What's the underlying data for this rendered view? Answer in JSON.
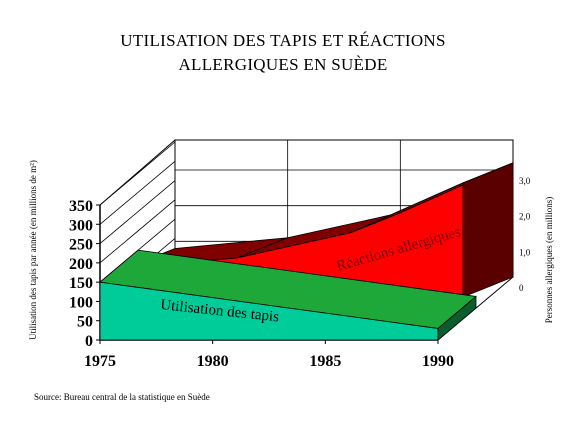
{
  "title_line1": "UTILISATION DES TAPIS ET RÉACTIONS",
  "title_line2": "ALLERGIQUES EN SUÈDE",
  "source": "Source:  Bureau central de la statistique en Suède",
  "colors": {
    "carpet_front": "#00cc99",
    "carpet_top": "#1fa83a",
    "carpet_side": "#0b5d2e",
    "allergy_front": "#ff0000",
    "allergy_top": "#800000",
    "allergy_side": "#5a0000"
  },
  "chart_data": {
    "type": "area",
    "title": "UTILISATION DES TAPIS ET RÉACTIONS ALLERGIQUES EN SUÈDE",
    "x": [
      1975,
      1980,
      1985,
      1990
    ],
    "x_ticks": [
      "1975",
      "1980",
      "1985",
      "1990"
    ],
    "ylabel_left": "Utilisation des tapis par année (en millions de m²)",
    "ylabel_right": "Personnes allergiques (en millions)",
    "y_left_ticks": [
      "0",
      "50",
      "100",
      "150",
      "200",
      "250",
      "300",
      "350"
    ],
    "y_left_lim": [
      0,
      350
    ],
    "y_right_ticks": [
      "0",
      "1,0",
      "2,0",
      "3,0"
    ],
    "y_right_lim": [
      0,
      3
    ],
    "series": [
      {
        "name": "Utilisation des tapis",
        "axis": "left",
        "x": [
          1975,
          1990
        ],
        "values": [
          150,
          30
        ]
      },
      {
        "name": "Réactions allergiques",
        "axis": "right",
        "x": [
          1975,
          1980,
          1985,
          1990
        ],
        "values": [
          0.8,
          1.1,
          1.8,
          3.2
        ]
      }
    ],
    "grid": true,
    "three_d": true
  }
}
